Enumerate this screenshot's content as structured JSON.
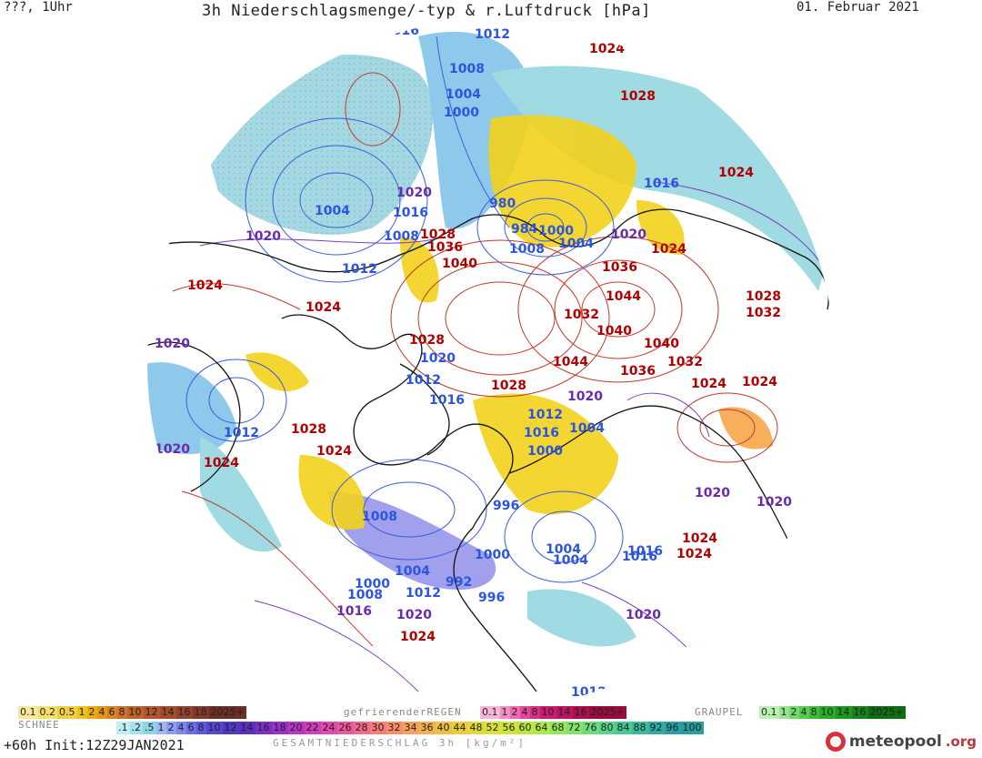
{
  "header": {
    "left": "???, 1Uhr",
    "title": "3h Niederschlagsmenge/-typ & r.Luftdruck [hPa]",
    "date": "01. Februar 2021"
  },
  "map": {
    "projection": "north-polar-stereographic",
    "field": "pressure contours + 3h precipitation",
    "colors": {
      "high_contour": "#c0392b",
      "low_contour": "#3b5bdb",
      "mid_contour": "#7b3fbf",
      "snow": "#7fd0dc",
      "rain": "#f2d21b",
      "coast": "#111111"
    },
    "pressure_labels": [
      {
        "text": "1016",
        "type": "lo"
      },
      {
        "text": "1012",
        "type": "lo"
      },
      {
        "text": "1024",
        "type": "hi"
      },
      {
        "text": "1008",
        "type": "lo"
      },
      {
        "text": "1004",
        "type": "lo"
      },
      {
        "text": "1000",
        "type": "lo"
      },
      {
        "text": "1028",
        "type": "hi"
      },
      {
        "text": "1024",
        "type": "hi"
      },
      {
        "text": "1016",
        "type": "lo"
      },
      {
        "text": "1020",
        "type": "mid"
      },
      {
        "text": "1004",
        "type": "lo"
      },
      {
        "text": "1016",
        "type": "lo"
      },
      {
        "text": "980",
        "type": "lo"
      },
      {
        "text": "984",
        "type": "lo"
      },
      {
        "text": "1000",
        "type": "lo"
      },
      {
        "text": "1020",
        "type": "mid"
      },
      {
        "text": "1028",
        "type": "hi"
      },
      {
        "text": "1036",
        "type": "hi"
      },
      {
        "text": "1008",
        "type": "lo"
      },
      {
        "text": "1008",
        "type": "lo"
      },
      {
        "text": "1004",
        "type": "lo"
      },
      {
        "text": "1024",
        "type": "hi"
      },
      {
        "text": "1020",
        "type": "mid"
      },
      {
        "text": "1012",
        "type": "lo"
      },
      {
        "text": "1040",
        "type": "hi"
      },
      {
        "text": "1036",
        "type": "hi"
      },
      {
        "text": "1024",
        "type": "hi"
      },
      {
        "text": "1024",
        "type": "hi"
      },
      {
        "text": "1044",
        "type": "hi"
      },
      {
        "text": "1028",
        "type": "hi"
      },
      {
        "text": "1032",
        "type": "hi"
      },
      {
        "text": "1032",
        "type": "hi"
      },
      {
        "text": "1040",
        "type": "hi"
      },
      {
        "text": "1020",
        "type": "mid"
      },
      {
        "text": "1028",
        "type": "hi"
      },
      {
        "text": "1040",
        "type": "hi"
      },
      {
        "text": "1032",
        "type": "hi"
      },
      {
        "text": "1020",
        "type": "lo"
      },
      {
        "text": "1044",
        "type": "hi"
      },
      {
        "text": "1036",
        "type": "hi"
      },
      {
        "text": "1012",
        "type": "lo"
      },
      {
        "text": "1024",
        "type": "hi"
      },
      {
        "text": "1028",
        "type": "hi"
      },
      {
        "text": "1024",
        "type": "hi"
      },
      {
        "text": "1016",
        "type": "lo"
      },
      {
        "text": "1020",
        "type": "mid"
      },
      {
        "text": "1012",
        "type": "lo"
      },
      {
        "text": "1016",
        "type": "lo"
      },
      {
        "text": "1012",
        "type": "lo"
      },
      {
        "text": "1020",
        "type": "mid"
      },
      {
        "text": "1024",
        "type": "hi"
      },
      {
        "text": "1028",
        "type": "hi"
      },
      {
        "text": "1000",
        "type": "lo"
      },
      {
        "text": "1004",
        "type": "lo"
      },
      {
        "text": "1020",
        "type": "mid"
      },
      {
        "text": "1024",
        "type": "hi"
      },
      {
        "text": "1024",
        "type": "hi"
      },
      {
        "text": "1004",
        "type": "lo"
      },
      {
        "text": "1016",
        "type": "lo"
      },
      {
        "text": "1008",
        "type": "lo"
      },
      {
        "text": "996",
        "type": "lo"
      },
      {
        "text": "1020",
        "type": "mid"
      },
      {
        "text": "1000",
        "type": "lo"
      },
      {
        "text": "1004",
        "type": "lo"
      },
      {
        "text": "1016",
        "type": "lo"
      },
      {
        "text": "1024",
        "type": "hi"
      },
      {
        "text": "1000",
        "type": "lo"
      },
      {
        "text": "1004",
        "type": "lo"
      },
      {
        "text": "992",
        "type": "lo"
      },
      {
        "text": "996",
        "type": "lo"
      },
      {
        "text": "1008",
        "type": "lo"
      },
      {
        "text": "1012",
        "type": "lo"
      },
      {
        "text": "1016",
        "type": "mid"
      },
      {
        "text": "1020",
        "type": "mid"
      },
      {
        "text": "1024",
        "type": "hi"
      },
      {
        "text": "1020",
        "type": "mid"
      },
      {
        "text": "1020",
        "type": "mid"
      },
      {
        "text": "1012",
        "type": "lo"
      }
    ]
  },
  "legend": {
    "snow_title": "SCHNEE",
    "snow_values": [
      "0.1",
      "0.2",
      "0.5",
      "1",
      "2",
      "4",
      "6",
      "8",
      "10",
      "12",
      "14",
      "16",
      "18",
      "2025+"
    ],
    "freezing_rain_title": "gefrierenderREGEN",
    "freezing_rain_values": [
      "0.1",
      "1",
      "2",
      "4",
      "8",
      "10",
      "14",
      "16",
      "2025+"
    ],
    "graupel_title": "GRAUPEL",
    "graupel_values": [
      "0.1",
      "1",
      "2",
      "4",
      "8",
      "10",
      "14",
      "16",
      "2025+"
    ],
    "total_values": [
      ".1",
      ".2",
      ".5",
      "1",
      "2",
      "4",
      "6",
      "8",
      "10",
      "12",
      "14",
      "16",
      "18",
      "20",
      "22",
      "24",
      "26",
      "28",
      "30",
      "32",
      "34",
      "36",
      "40",
      "44",
      "48",
      "52",
      "56",
      "60",
      "64",
      "68",
      "72",
      "76",
      "80",
      "84",
      "88",
      "92",
      "96",
      "100"
    ],
    "total_title": "GESAMTNIEDERSCHLAG 3h [kg/m²]"
  },
  "footer": {
    "run": "+60h  Init:12Z29JAN2021"
  },
  "logo": {
    "name": "meteopool",
    "tld": ".org"
  }
}
